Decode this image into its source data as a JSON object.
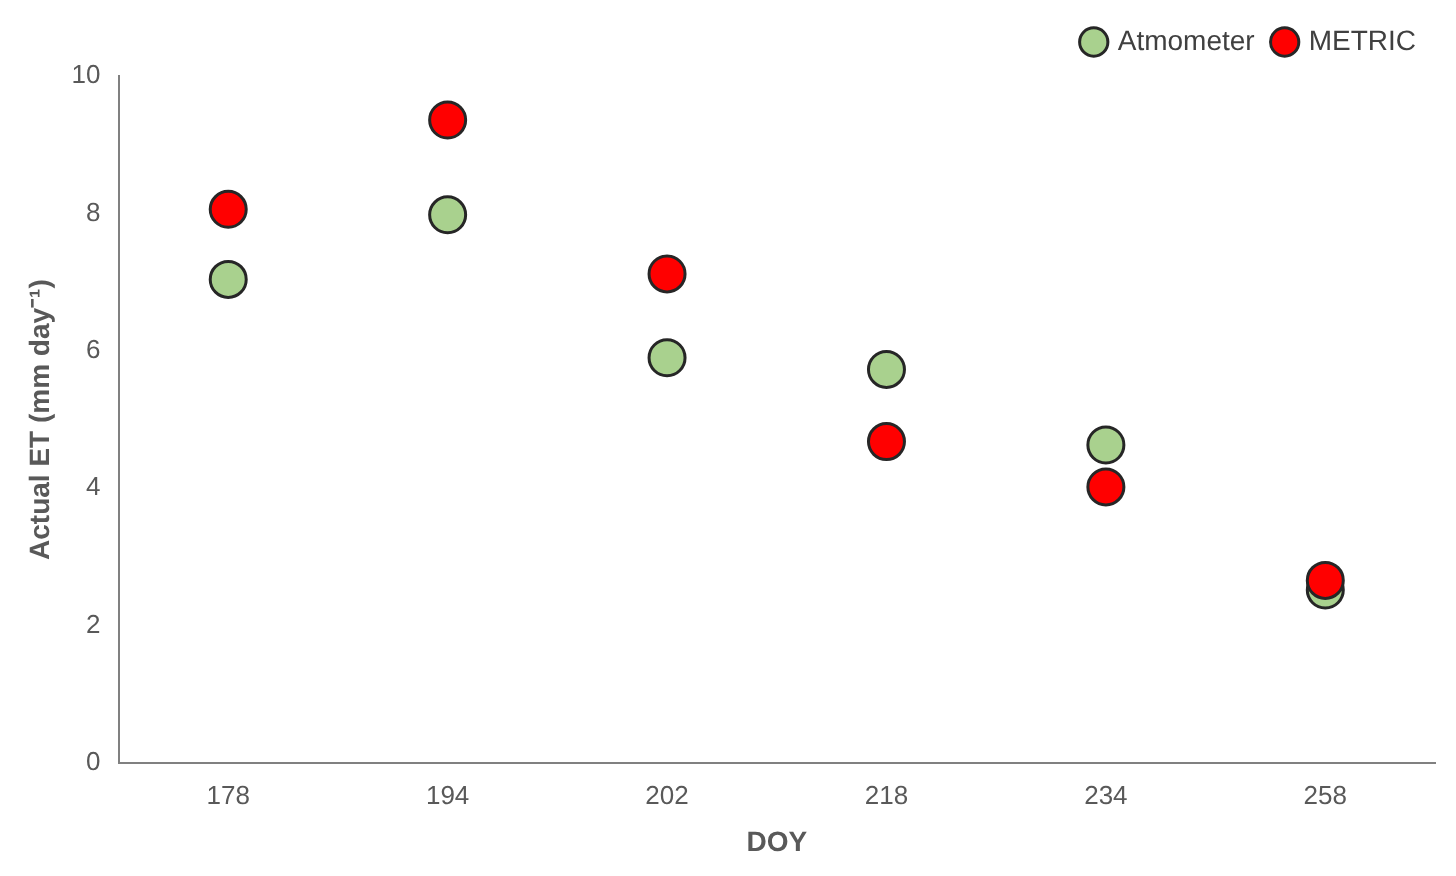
{
  "chart_data": {
    "type": "scatter",
    "xlabel": "DOY",
    "ylabel": "Actual ET (mm day⁻¹)",
    "categories": [
      "178",
      "194",
      "202",
      "218",
      "234",
      "258"
    ],
    "series": [
      {
        "name": "Atmometer",
        "color": "#a9d18e",
        "values": [
          7.04,
          7.98,
          5.9,
          5.73,
          4.63,
          2.52
        ]
      },
      {
        "name": "METRIC",
        "color": "#ff0000",
        "values": [
          8.06,
          9.36,
          7.12,
          4.68,
          4.02,
          2.66
        ]
      }
    ],
    "ylim": [
      0,
      10
    ],
    "yticks": [
      0,
      2,
      4,
      6,
      8,
      10
    ],
    "grid": false,
    "legend": "top right",
    "marker": "circle"
  }
}
